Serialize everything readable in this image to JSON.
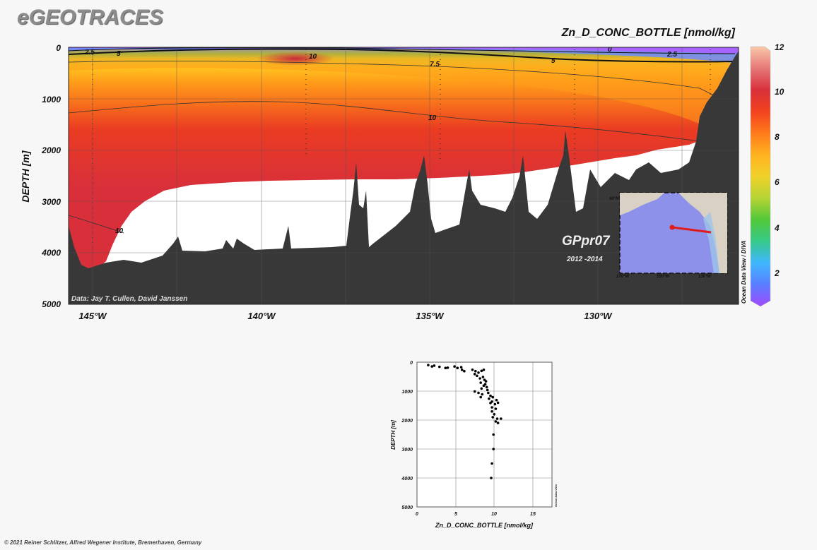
{
  "header": {
    "logo": "eGEOTRACES",
    "parameter_title": "Zn_D_CONC_BOTTLE [nmol/kg]",
    "copyright": "© 2021 Reiner Schlitzer, Alfred Wegener Institute, Bremerhaven, Germany"
  },
  "section": {
    "ylabel": "DEPTH [m]",
    "y_ticks": [
      "0",
      "1000",
      "2000",
      "3000",
      "4000",
      "5000"
    ],
    "x_ticks": [
      "145°W",
      "140°W",
      "135°W",
      "130°W"
    ],
    "data_credit": "Data: Jay T. Cullen, David Janssen",
    "cruise_label": "GPpr07",
    "cruise_years": "2012 -2014",
    "contour_labels": [
      "2.5",
      "5",
      "10",
      "7.5",
      "5",
      "0",
      "2.5",
      "10",
      "10"
    ],
    "odv_credit": "Ocean Data View / DIVA",
    "inset_lat_tick": "60°N",
    "inset_lon_ticks": [
      "170°W",
      "150°W",
      "130°W"
    ]
  },
  "colorbar": {
    "ticks": [
      "12",
      "10",
      "8",
      "6",
      "4",
      "2"
    ],
    "colors": [
      "#a04aff",
      "#5a7dff",
      "#3fb7ff",
      "#36c98a",
      "#52c83a",
      "#b5d334",
      "#f0d22a",
      "#ffb21f",
      "#ff7a1b",
      "#f2421f",
      "#d8303a",
      "#e67878",
      "#f9c8a8"
    ]
  },
  "profile": {
    "xlabel": "Zn_D_CONC_BOTTLE [nmol/kg]",
    "ylabel": "DEPTH [m]",
    "x_ticks": [
      "0",
      "5",
      "10",
      "15"
    ],
    "y_ticks": [
      "0",
      "1000",
      "2000",
      "3000",
      "4000",
      "5000"
    ],
    "odv_credit": "Ocean Data View"
  },
  "chart_data": [
    {
      "type": "heatmap",
      "title": "Zn_D_CONC_BOTTLE [nmol/kg]",
      "xlabel": "",
      "ylabel": "DEPTH [m]",
      "xlim": [
        -146,
        -125
      ],
      "ylim": [
        5000,
        0
      ],
      "colorbar_range": [
        0.5,
        12
      ],
      "grid": true,
      "contour_levels": [
        0,
        2.5,
        5,
        7.5,
        10
      ]
    },
    {
      "type": "scatter",
      "xlabel": "Zn_D_CONC_BOTTLE [nmol/kg]",
      "ylabel": "DEPTH [m]",
      "xlim": [
        0,
        18
      ],
      "ylim": [
        5000,
        0
      ],
      "grid": true,
      "points": [
        [
          1.5,
          100
        ],
        [
          2.0,
          150
        ],
        [
          2.3,
          120
        ],
        [
          3.0,
          160
        ],
        [
          3.8,
          200
        ],
        [
          4.1,
          190
        ],
        [
          5.0,
          150
        ],
        [
          5.4,
          200
        ],
        [
          5.9,
          170
        ],
        [
          6.0,
          260
        ],
        [
          6.3,
          310
        ],
        [
          7.4,
          260
        ],
        [
          7.8,
          310
        ],
        [
          8.2,
          360
        ],
        [
          8.6,
          300
        ],
        [
          8.9,
          260
        ],
        [
          7.7,
          410
        ],
        [
          8.0,
          470
        ],
        [
          8.4,
          560
        ],
        [
          8.8,
          510
        ],
        [
          9.0,
          610
        ],
        [
          9.2,
          660
        ],
        [
          8.5,
          710
        ],
        [
          9.1,
          760
        ],
        [
          8.9,
          810
        ],
        [
          9.3,
          860
        ],
        [
          8.6,
          910
        ],
        [
          9.4,
          960
        ],
        [
          7.7,
          1010
        ],
        [
          8.2,
          1060
        ],
        [
          8.7,
          1110
        ],
        [
          9.5,
          1060
        ],
        [
          9.8,
          1160
        ],
        [
          10.1,
          1210
        ],
        [
          8.5,
          1210
        ],
        [
          9.6,
          1260
        ],
        [
          10.6,
          1310
        ],
        [
          10.0,
          1360
        ],
        [
          9.8,
          1410
        ],
        [
          10.4,
          1450
        ],
        [
          10.8,
          1400
        ],
        [
          10.0,
          1560
        ],
        [
          10.5,
          1610
        ],
        [
          10.0,
          1700
        ],
        [
          10.3,
          1800
        ],
        [
          10.1,
          1900
        ],
        [
          10.7,
          1950
        ],
        [
          11.2,
          1950
        ],
        [
          10.5,
          2050
        ],
        [
          10.8,
          2100
        ],
        [
          10.2,
          2500
        ],
        [
          10.2,
          3000
        ],
        [
          10.0,
          3500
        ],
        [
          9.9,
          4000
        ]
      ]
    }
  ]
}
